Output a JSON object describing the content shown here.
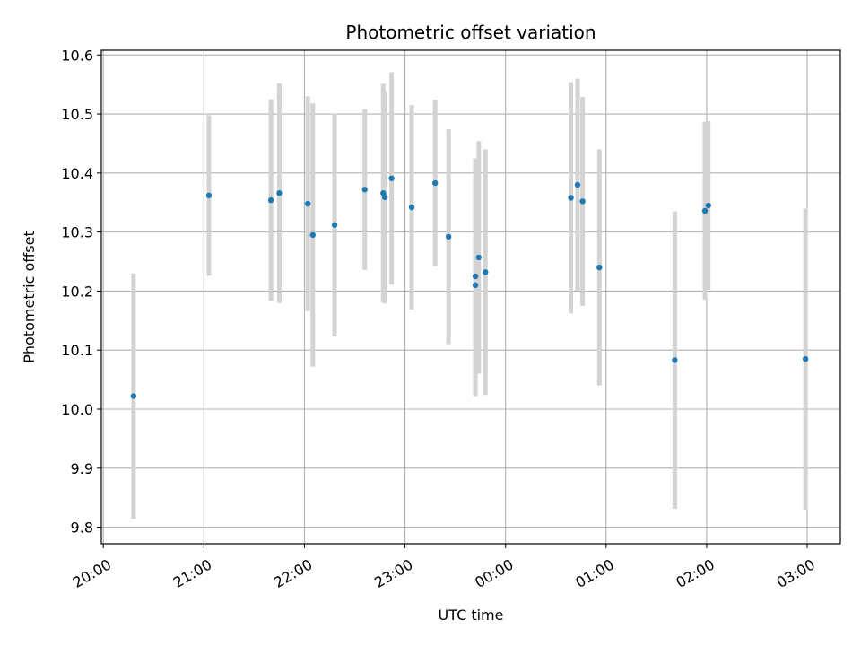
{
  "chart_data": {
    "type": "scatter",
    "title": "Photometric offset variation",
    "xlabel": "UTC time",
    "ylabel": "Photometric offset",
    "x_ticks": [
      "20:00",
      "21:00",
      "22:00",
      "23:00",
      "00:00",
      "01:00",
      "02:00",
      "03:00"
    ],
    "y_ticks": [
      "9.8",
      "9.9",
      "10.0",
      "10.1",
      "10.2",
      "10.3",
      "10.4",
      "10.5",
      "10.6"
    ],
    "xlim_hours": [
      19.98,
      27.33
    ],
    "ylim": [
      9.772,
      10.608
    ],
    "grid": true,
    "colors": {
      "points": "#1f77b4",
      "errorbars": "#d3d3d3",
      "grid": "#b0b0b0"
    },
    "points": [
      {
        "t": "20:18",
        "y": 10.022,
        "err": 0.208
      },
      {
        "t": "21:03",
        "y": 10.362,
        "err": 0.136
      },
      {
        "t": "21:40",
        "y": 10.354,
        "err": 0.171
      },
      {
        "t": "21:45",
        "y": 10.366,
        "err": 0.186
      },
      {
        "t": "22:02",
        "y": 10.348,
        "err": 0.182
      },
      {
        "t": "22:05",
        "y": 10.295,
        "err": 0.223
      },
      {
        "t": "22:18",
        "y": 10.312,
        "err": 0.189
      },
      {
        "t": "22:36",
        "y": 10.372,
        "err": 0.136
      },
      {
        "t": "22:47",
        "y": 10.366,
        "err": 0.185
      },
      {
        "t": "22:48",
        "y": 10.359,
        "err": 0.18
      },
      {
        "t": "22:52",
        "y": 10.391,
        "err": 0.18
      },
      {
        "t": "23:04",
        "y": 10.342,
        "err": 0.173
      },
      {
        "t": "23:18",
        "y": 10.383,
        "err": 0.141
      },
      {
        "t": "23:26",
        "y": 10.292,
        "err": 0.182
      },
      {
        "t": "23:42",
        "y": 10.225,
        "err": 0.2
      },
      {
        "t": "23:42",
        "y": 10.21,
        "err": 0.188
      },
      {
        "t": "23:44",
        "y": 10.257,
        "err": 0.197
      },
      {
        "t": "23:48",
        "y": 10.232,
        "err": 0.208
      },
      {
        "t": "00:39",
        "y": 10.358,
        "err": 0.196
      },
      {
        "t": "00:43",
        "y": 10.38,
        "err": 0.18
      },
      {
        "t": "00:46",
        "y": 10.352,
        "err": 0.177
      },
      {
        "t": "00:56",
        "y": 10.24,
        "err": 0.2
      },
      {
        "t": "01:41",
        "y": 10.083,
        "err": 0.252
      },
      {
        "t": "01:59",
        "y": 10.336,
        "err": 0.151
      },
      {
        "t": "02:01",
        "y": 10.345,
        "err": 0.143
      },
      {
        "t": "02:59",
        "y": 10.085,
        "err": 0.255
      }
    ]
  }
}
